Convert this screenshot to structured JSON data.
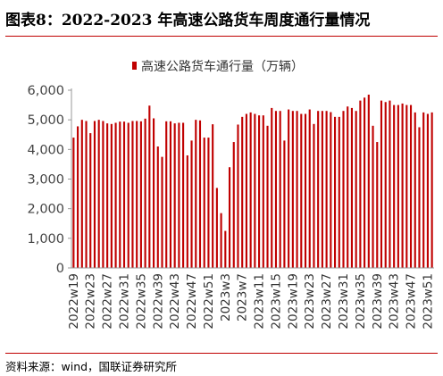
{
  "title": "图表8：2022-2023 年高速公路货车周度通行量情况",
  "source": "资料来源：wind，国联证券研究所",
  "colors": {
    "bar": "#c00000",
    "rule": "#c00000",
    "axis": "#999999"
  },
  "chart_data": {
    "type": "bar",
    "title": "",
    "xlabel": "",
    "ylabel": "",
    "legend_position": "top-center",
    "ylim": [
      0,
      6000
    ],
    "yticks": [
      "0",
      "1,000",
      "2,000",
      "3,000",
      "4,000",
      "5,000",
      "6,000"
    ],
    "x_tick_labels": [
      "2022w19",
      "2022w23",
      "2022w27",
      "2022w31",
      "2022w35",
      "2022w39",
      "2022w43",
      "2022w47",
      "2022w51",
      "2023w3",
      "2023w7",
      "2023w11",
      "2023w15",
      "2023w19",
      "2023w23",
      "2023w27",
      "2023w31",
      "2023w35",
      "2023w39",
      "2023w43",
      "2023w47",
      "2023w51"
    ],
    "categories": [
      "2022w19",
      "2022w20",
      "2022w21",
      "2022w22",
      "2022w23",
      "2022w24",
      "2022w25",
      "2022w26",
      "2022w27",
      "2022w28",
      "2022w29",
      "2022w30",
      "2022w31",
      "2022w32",
      "2022w33",
      "2022w34",
      "2022w35",
      "2022w36",
      "2022w37",
      "2022w38",
      "2022w39",
      "2022w40",
      "2022w41",
      "2022w42",
      "2022w43",
      "2022w44",
      "2022w45",
      "2022w46",
      "2022w47",
      "2022w48",
      "2022w49",
      "2022w50",
      "2022w51",
      "2022w52",
      "2023w1",
      "2023w2",
      "2023w3",
      "2023w4",
      "2023w5",
      "2023w6",
      "2023w7",
      "2023w8",
      "2023w9",
      "2023w10",
      "2023w11",
      "2023w12",
      "2023w13",
      "2023w14",
      "2023w15",
      "2023w16",
      "2023w17",
      "2023w18",
      "2023w19",
      "2023w20",
      "2023w21",
      "2023w22",
      "2023w23",
      "2023w24",
      "2023w25",
      "2023w26",
      "2023w27",
      "2023w28",
      "2023w29",
      "2023w30",
      "2023w31",
      "2023w32",
      "2023w33",
      "2023w34",
      "2023w35",
      "2023w36",
      "2023w37",
      "2023w38",
      "2023w39",
      "2023w40",
      "2023w41",
      "2023w42",
      "2023w43",
      "2023w44",
      "2023w45",
      "2023w46",
      "2023w47",
      "2023w48",
      "2023w49",
      "2023w50",
      "2023w51",
      "2023w52"
    ],
    "series": [
      {
        "name": "高速公路货车通行量（万辆）",
        "values": [
          4400,
          4780,
          5000,
          4960,
          4550,
          4960,
          5000,
          4960,
          4880,
          4860,
          4900,
          4940,
          4940,
          4900,
          4960,
          4960,
          4950,
          5040,
          5480,
          5050,
          4100,
          3750,
          4950,
          4950,
          4880,
          4900,
          4900,
          3800,
          4300,
          5000,
          4980,
          4400,
          4400,
          4850,
          2700,
          1850,
          1250,
          3400,
          4250,
          4840,
          5100,
          5200,
          5250,
          5200,
          5150,
          5150,
          4800,
          5400,
          5300,
          5300,
          4300,
          5350,
          5300,
          5300,
          5200,
          5200,
          5350,
          4860,
          5300,
          5300,
          5300,
          5260,
          5100,
          5100,
          5300,
          5450,
          5400,
          5300,
          5650,
          5750,
          5850,
          4800,
          4250,
          5650,
          5600,
          5650,
          5500,
          5500,
          5550,
          5500,
          5500,
          5250,
          4750,
          5250,
          5200,
          5250
        ]
      }
    ]
  }
}
